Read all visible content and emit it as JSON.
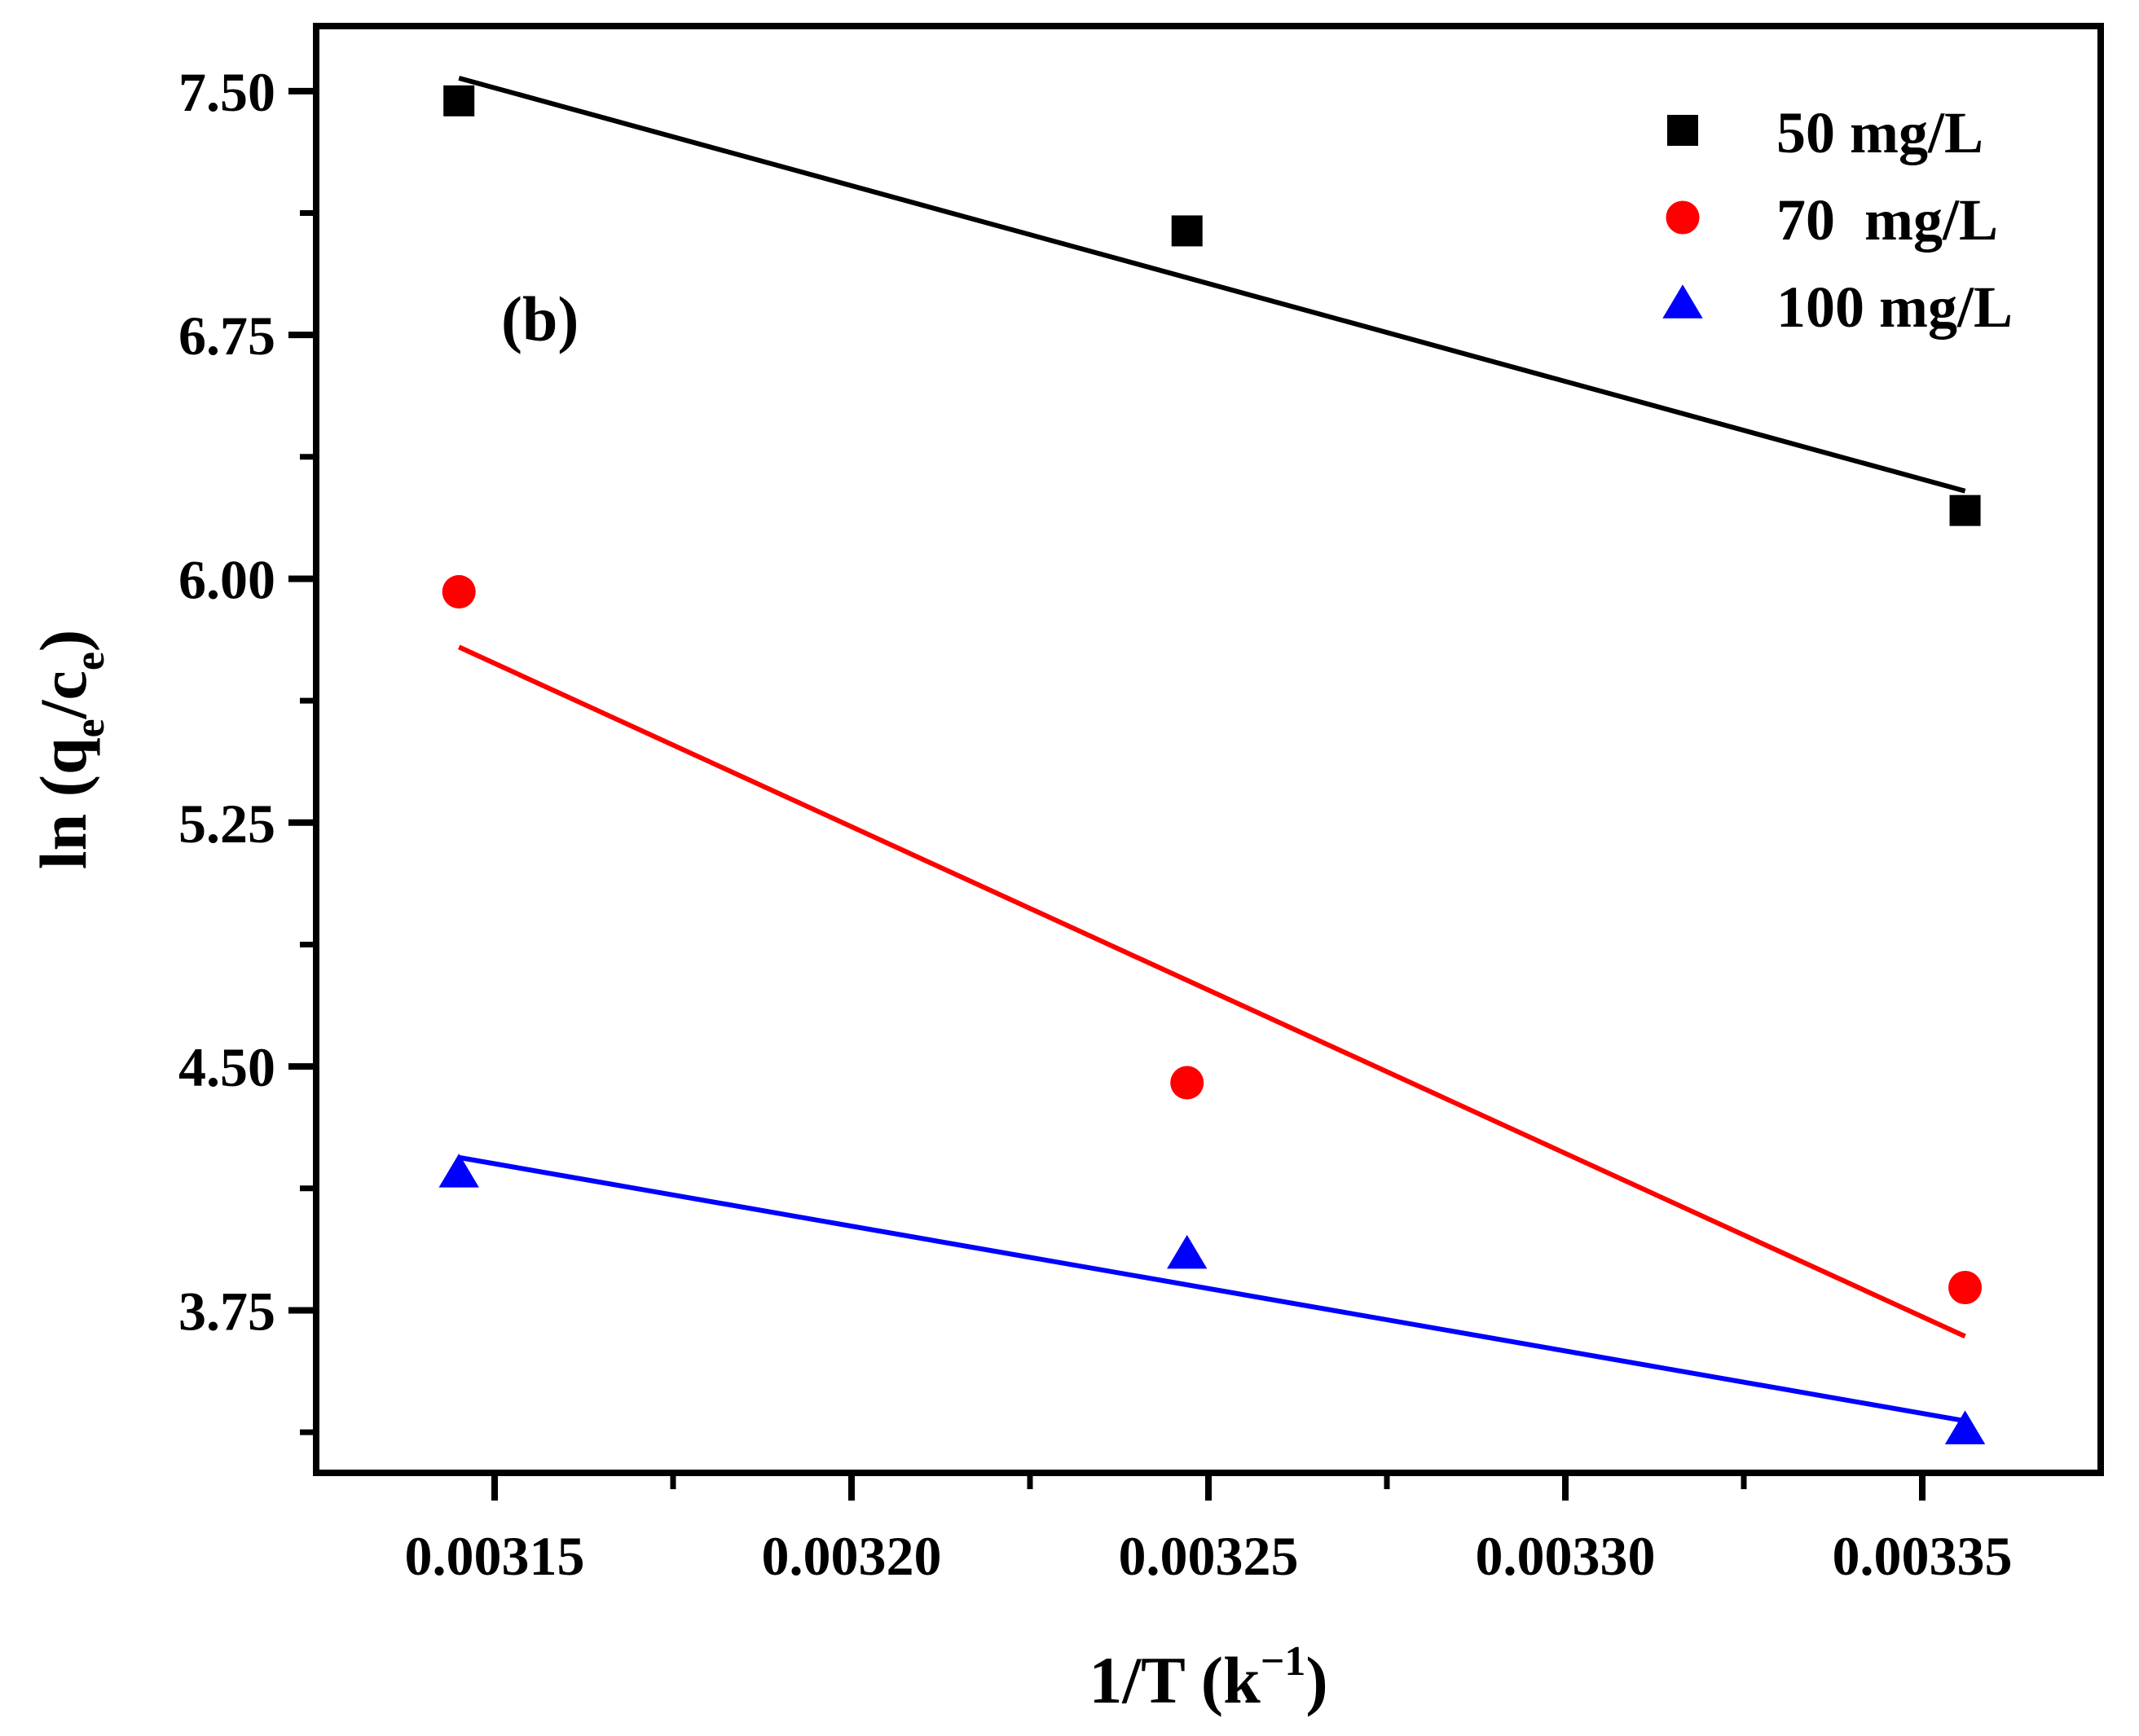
{
  "chart_data": {
    "type": "scatter",
    "panel_label": "(b)",
    "xlabel": {
      "base": "1/T (k",
      "sup": "−1",
      "tail": ")"
    },
    "ylabel": {
      "prefix": "ln (q",
      "sub1": "e",
      "mid": "/c",
      "sub2": "e",
      "suffix": ")"
    },
    "xlim": [
      0.003125,
      0.003375
    ],
    "ylim": [
      3.25,
      7.7
    ],
    "x_ticks": [
      0.00315,
      0.0032,
      0.00325,
      0.0033,
      0.00335
    ],
    "x_tick_labels": [
      "0.00315",
      "0.00320",
      "0.00325",
      "0.00330",
      "0.00335"
    ],
    "y_ticks": [
      3.75,
      4.5,
      5.25,
      6.0,
      6.75,
      7.5
    ],
    "y_tick_labels": [
      "3.75",
      "4.50",
      "5.25",
      "6.00",
      "6.75",
      "7.50"
    ],
    "legend_position": "top-right",
    "series": [
      {
        "name": "50 mg/L",
        "marker": "square",
        "color": "#000000",
        "x": [
          0.003145,
          0.003247,
          0.003356
        ],
        "y": [
          7.47,
          7.07,
          6.21
        ],
        "fit": {
          "x": [
            0.003145,
            0.003356
          ],
          "y": [
            7.54,
            6.27
          ]
        }
      },
      {
        "name": "70  mg/L",
        "marker": "circle",
        "color": "#ff0000",
        "x": [
          0.003145,
          0.003247,
          0.003356
        ],
        "y": [
          5.96,
          4.45,
          3.82
        ],
        "fit": {
          "x": [
            0.003145,
            0.003356
          ],
          "y": [
            5.79,
            3.67
          ]
        }
      },
      {
        "name": "100 mg/L",
        "marker": "triangle",
        "color": "#0000ff",
        "x": [
          0.003145,
          0.003247,
          0.003356
        ],
        "y": [
          4.17,
          3.92,
          3.38
        ],
        "fit": {
          "x": [
            0.003145,
            0.003356
          ],
          "y": [
            4.22,
            3.41
          ]
        }
      }
    ]
  }
}
